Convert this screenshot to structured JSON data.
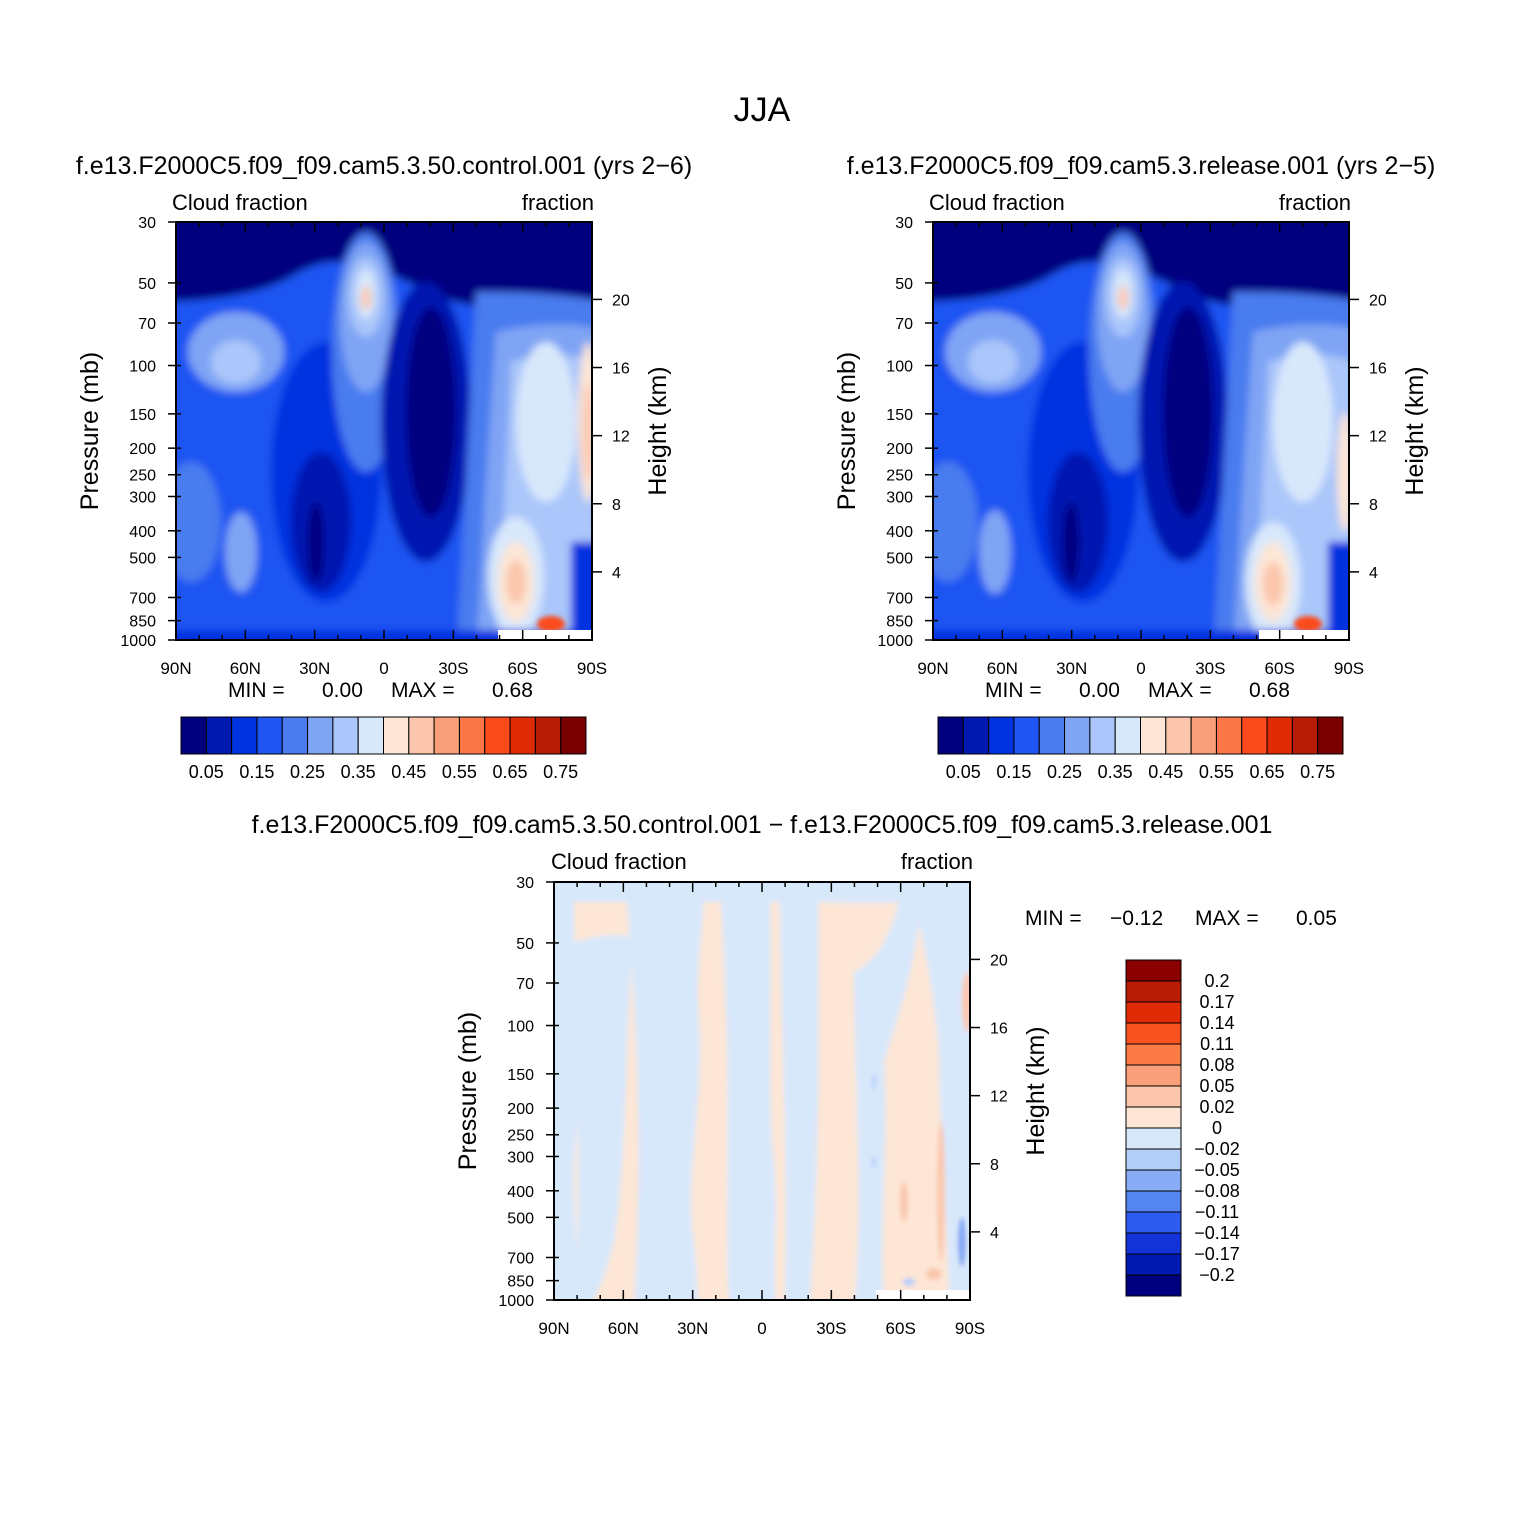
{
  "figure": {
    "title": "JJA"
  },
  "chart_data": [
    {
      "id": "control",
      "type": "contour",
      "title": "f.e13.F2000C5.f09_f09.cam5.3.50.control.001 (yrs 2−6)",
      "left_label": "Cloud fraction",
      "right_label": "fraction",
      "ylabel": "Pressure (mb)",
      "y2label": "Height (km)",
      "x_ticks": [
        "90N",
        "60N",
        "30N",
        "0",
        "30S",
        "60S",
        "90S"
      ],
      "x_values": [
        90,
        60,
        30,
        0,
        -30,
        -60,
        -90
      ],
      "y_ticks": [
        "30",
        "50",
        "70",
        "100",
        "150",
        "200",
        "250",
        "300",
        "400",
        "500",
        "700",
        "850",
        "1000"
      ],
      "y_values": [
        30,
        50,
        70,
        100,
        150,
        200,
        250,
        300,
        400,
        500,
        700,
        850,
        1000
      ],
      "y2_ticks": [
        "20",
        "16",
        "12",
        "8",
        "4"
      ],
      "y2_values": [
        20,
        16,
        12,
        8,
        4
      ],
      "ylim": [
        30,
        1000
      ],
      "xlim": [
        90,
        -90
      ],
      "stats": {
        "min_label": "MIN =",
        "min": "0.00",
        "max_label": "MAX =",
        "max": "0.68"
      },
      "colorbar": {
        "orientation": "horizontal",
        "colors": [
          "#00007f",
          "#0019b0",
          "#0033e0",
          "#1f55f2",
          "#4a7cef",
          "#7fa4f4",
          "#aac6fa",
          "#d8e8fb",
          "#fde6d6",
          "#fbc6ac",
          "#f9a07a",
          "#fb7747",
          "#fb4b1d",
          "#e12b06",
          "#b81c05",
          "#7a0000"
        ],
        "labels": [
          "0.05",
          "0.15",
          "0.25",
          "0.35",
          "0.45",
          "0.55",
          "0.65",
          "0.75"
        ]
      }
    },
    {
      "id": "release",
      "type": "contour",
      "title": "f.e13.F2000C5.f09_f09.cam5.3.release.001 (yrs 2−5)",
      "left_label": "Cloud fraction",
      "right_label": "fraction",
      "ylabel": "Pressure (mb)",
      "y2label": "Height (km)",
      "x_ticks": [
        "90N",
        "60N",
        "30N",
        "0",
        "30S",
        "60S",
        "90S"
      ],
      "x_values": [
        90,
        60,
        30,
        0,
        -30,
        -60,
        -90
      ],
      "y_ticks": [
        "30",
        "50",
        "70",
        "100",
        "150",
        "200",
        "250",
        "300",
        "400",
        "500",
        "700",
        "850",
        "1000"
      ],
      "y_values": [
        30,
        50,
        70,
        100,
        150,
        200,
        250,
        300,
        400,
        500,
        700,
        850,
        1000
      ],
      "y2_ticks": [
        "20",
        "16",
        "12",
        "8",
        "4"
      ],
      "y2_values": [
        20,
        16,
        12,
        8,
        4
      ],
      "ylim": [
        30,
        1000
      ],
      "xlim": [
        90,
        -90
      ],
      "stats": {
        "min_label": "MIN =",
        "min": "0.00",
        "max_label": "MAX =",
        "max": "0.68"
      },
      "colorbar": {
        "orientation": "horizontal",
        "colors": [
          "#00007f",
          "#0019b0",
          "#0033e0",
          "#1f55f2",
          "#4a7cef",
          "#7fa4f4",
          "#aac6fa",
          "#d8e8fb",
          "#fde6d6",
          "#fbc6ac",
          "#f9a07a",
          "#fb7747",
          "#fb4b1d",
          "#e12b06",
          "#b81c05",
          "#7a0000"
        ],
        "labels": [
          "0.05",
          "0.15",
          "0.25",
          "0.35",
          "0.45",
          "0.55",
          "0.65",
          "0.75"
        ]
      }
    },
    {
      "id": "difference",
      "type": "contour",
      "title": "f.e13.F2000C5.f09_f09.cam5.3.50.control.001 − f.e13.F2000C5.f09_f09.cam5.3.release.001",
      "left_label": "Cloud fraction",
      "right_label": "fraction",
      "ylabel": "Pressure (mb)",
      "y2label": "Height (km)",
      "x_ticks": [
        "90N",
        "60N",
        "30N",
        "0",
        "30S",
        "60S",
        "90S"
      ],
      "x_values": [
        90,
        60,
        30,
        0,
        -30,
        -60,
        -90
      ],
      "y_ticks": [
        "30",
        "50",
        "70",
        "100",
        "150",
        "200",
        "250",
        "300",
        "400",
        "500",
        "700",
        "850",
        "1000"
      ],
      "y_values": [
        30,
        50,
        70,
        100,
        150,
        200,
        250,
        300,
        400,
        500,
        700,
        850,
        1000
      ],
      "y2_ticks": [
        "20",
        "16",
        "12",
        "8",
        "4"
      ],
      "y2_values": [
        20,
        16,
        12,
        8,
        4
      ],
      "ylim": [
        30,
        1000
      ],
      "xlim": [
        90,
        -90
      ],
      "stats": {
        "min_label": "MIN =",
        "min": "−0.12",
        "max_label": "MAX =",
        "max": "0.05"
      },
      "colorbar": {
        "orientation": "vertical",
        "colors_top_to_bottom": [
          "#8b0000",
          "#b81c05",
          "#e12b06",
          "#fb5320",
          "#fb7a45",
          "#f9a07a",
          "#fbc6ac",
          "#fde6d6",
          "#d8e8fb",
          "#b4cefa",
          "#88acf5",
          "#5585f1",
          "#2d5cf0",
          "#1233d8",
          "#0019b0",
          "#00007f"
        ],
        "labels": [
          "0.2",
          "0.17",
          "0.14",
          "0.11",
          "0.08",
          "0.05",
          "0.02",
          "0",
          "−0.02",
          "−0.05",
          "−0.08",
          "−0.11",
          "−0.14",
          "−0.17",
          "−0.2"
        ]
      }
    }
  ]
}
